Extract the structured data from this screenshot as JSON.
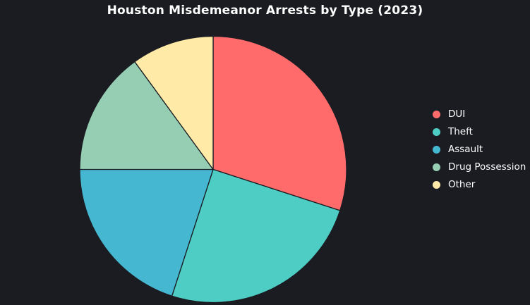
{
  "background_color": "#1a1c22",
  "text_color": "#ffffff",
  "chart_data": {
    "type": "pie",
    "title": "Houston Misdemeanor Arrests by Type (2023)",
    "slices": [
      {
        "label": "DUI",
        "value": 30,
        "color": "#ff6b6b"
      },
      {
        "label": "Theft",
        "value": 25,
        "color": "#4ecdc4"
      },
      {
        "label": "Assault",
        "value": 20,
        "color": "#45b7d1"
      },
      {
        "label": "Drug Possession",
        "value": 15,
        "color": "#96ceb4"
      },
      {
        "label": "Other",
        "value": 10,
        "color": "#ffeaa7"
      }
    ],
    "value_unit": "percent_estimated",
    "start_angle": "12-oclock",
    "direction": "clockwise",
    "slice_labels_shown": false,
    "legend_position": "right",
    "legend_marker": "circle"
  }
}
